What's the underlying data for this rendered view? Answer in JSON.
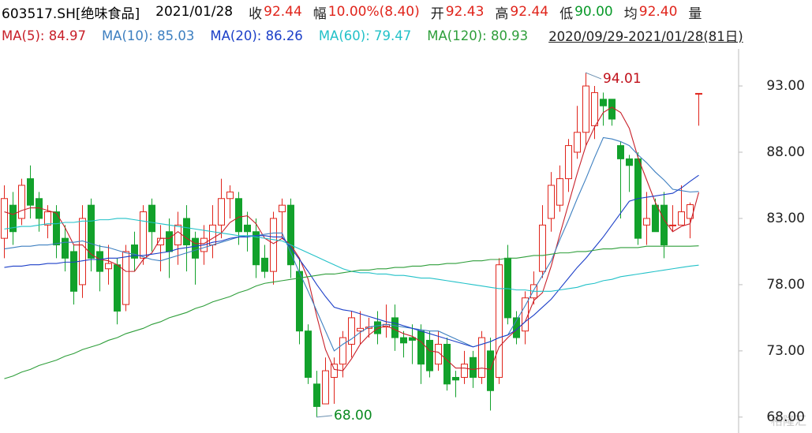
{
  "header": {
    "code": "603517.SH[绝味食品]",
    "date": "2021/01/28",
    "fields": [
      {
        "label": "收",
        "value": "92.44",
        "color": "#e0241b"
      },
      {
        "label": "幅",
        "value": "10.00%(8.40)",
        "color": "#e0241b"
      },
      {
        "label": "开",
        "value": "92.43",
        "color": "#e0241b"
      },
      {
        "label": "高",
        "value": "92.44",
        "color": "#e0241b"
      },
      {
        "label": "低",
        "value": "90.00",
        "color": "#0a9a2a"
      },
      {
        "label": "均",
        "value": "92.40",
        "color": "#e0241b"
      },
      {
        "label": "量",
        "value": "",
        "color": "#e0241b"
      }
    ],
    "range": "2020/09/29-2021/01/28(81日)",
    "watermark": "格隆汇"
  },
  "chart_data": {
    "type": "candlestick",
    "up_color": "#e0241b",
    "down_color": "#12a12b",
    "open": [
      81.5,
      84,
      83,
      86,
      84.5,
      82.5,
      83.5,
      81.5,
      80.5,
      78,
      84,
      80.5,
      79.2,
      79.5,
      76.5,
      81,
      80,
      84,
      81,
      82,
      81,
      83,
      81.5,
      80.5,
      81,
      82.5,
      84.5,
      84.5,
      82.5,
      82,
      80,
      79,
      83.5,
      84,
      79,
      74.5,
      70.5,
      69,
      71,
      72,
      73.5,
      74.5,
      74.7,
      75.2,
      74.8,
      75.5,
      74,
      74,
      74.5,
      73.8,
      72,
      73.5,
      71,
      71,
      72.5,
      71,
      73,
      71,
      80,
      75.5,
      74.5,
      77,
      79,
      83,
      84,
      86,
      88,
      89.5,
      90,
      92,
      92,
      88.5,
      87.5,
      87.5,
      82.5,
      84,
      84,
      82.5,
      82.5,
      83,
      92.43
    ],
    "high": [
      85.5,
      85,
      86,
      87,
      85,
      84,
      84,
      82.5,
      81,
      84,
      84.5,
      81,
      81,
      80,
      81,
      82,
      84,
      84.5,
      82.5,
      83,
      83.5,
      84,
      82,
      82.5,
      84,
      86,
      85.5,
      85,
      83.5,
      83,
      81,
      83.5,
      84.5,
      84.5,
      80,
      75,
      71.5,
      72.5,
      72.5,
      74.5,
      76,
      76,
      75.5,
      76,
      76.5,
      76.5,
      74.5,
      75,
      75,
      74.5,
      74.5,
      74,
      71.5,
      73,
      73,
      74.5,
      74,
      80,
      81,
      76,
      77.5,
      79,
      84,
      86.5,
      87,
      89,
      91.5,
      94.01,
      93,
      92.5,
      92,
      88.8,
      87.8,
      88,
      85,
      84.5,
      85,
      84,
      85.5,
      84.2,
      92.44
    ],
    "low": [
      80,
      81,
      82.5,
      83,
      82,
      81.5,
      80,
      79,
      76.5,
      77,
      79,
      77.5,
      78,
      75,
      76,
      79,
      79.5,
      80.5,
      79,
      78.5,
      79.5,
      79,
      78,
      79.5,
      80,
      81.5,
      83,
      81,
      80.5,
      78.5,
      78.5,
      78,
      81.5,
      78.5,
      73.5,
      70.5,
      68,
      69,
      69,
      71,
      72.5,
      73.5,
      74,
      73.5,
      74,
      73,
      72.5,
      72,
      70.5,
      71,
      71.5,
      70,
      69.5,
      70.5,
      70.2,
      70.5,
      68.5,
      70.5,
      75,
      73.5,
      73.5,
      76.5,
      78.5,
      82,
      83.5,
      85,
      87.5,
      88.5,
      89,
      90,
      90,
      83,
      85,
      81,
      81,
      82,
      80,
      82,
      82.5,
      81.5,
      90
    ],
    "close": [
      84.5,
      82,
      85.5,
      84,
      83,
      83.5,
      81,
      80,
      77.5,
      83,
      80,
      79,
      79.6,
      76,
      80.5,
      80,
      83.5,
      82,
      81.5,
      80.5,
      82.5,
      81,
      80,
      81.5,
      82.5,
      84.5,
      85,
      82,
      82,
      79.5,
      79,
      83,
      84,
      79.5,
      74.5,
      71,
      68.8,
      71.5,
      72,
      74,
      75.5,
      74.7,
      74.8,
      74.3,
      75,
      74,
      73.6,
      73.8,
      72,
      71.5,
      73.5,
      70.5,
      70.8,
      72,
      71,
      74,
      70,
      79.5,
      75.5,
      74,
      77,
      78,
      82.5,
      85.5,
      86,
      88.5,
      89.5,
      93,
      92.5,
      91.5,
      90.5,
      87.5,
      87,
      81.5,
      83,
      82,
      81,
      82.5,
      83.5,
      84.04,
      92.44
    ],
    "series": [
      {
        "label": "MA(5): 84.97",
        "color": "#c8202a",
        "values": [
          83.5,
          83.3,
          83.6,
          83.8,
          83.8,
          83.6,
          83.4,
          82.3,
          81.0,
          81.0,
          80.3,
          79.9,
          79.8,
          79.5,
          79.0,
          79.0,
          79.9,
          80.4,
          81.5,
          81.5,
          82.0,
          81.5,
          81.1,
          81.1,
          81.5,
          81.9,
          82.7,
          83.1,
          83.2,
          82.6,
          81.5,
          81.1,
          81.5,
          81.0,
          80.0,
          78.4,
          75.6,
          73.1,
          71.6,
          71.5,
          72.4,
          73.5,
          74.2,
          74.7,
          74.9,
          74.6,
          74.3,
          74.1,
          73.7,
          73.0,
          72.9,
          72.3,
          71.7,
          71.7,
          71.6,
          71.7,
          71.6,
          73.3,
          74.0,
          74.6,
          75.2,
          76.8,
          77.4,
          79.4,
          81.8,
          84.1,
          86.4,
          88.5,
          89.9,
          91.0,
          91.4,
          91.0,
          89.8,
          87.6,
          85.9,
          84.2,
          82.9,
          82.0,
          82.4,
          82.6,
          84.97
        ]
      },
      {
        "label": "MA(10): 85.03",
        "color": "#3d7fc0",
        "values": [
          80.7,
          80.8,
          80.9,
          80.9,
          81.0,
          81.0,
          81.1,
          81.2,
          81.2,
          81.3,
          81.1,
          80.9,
          80.8,
          80.6,
          80.4,
          80.3,
          80.1,
          79.9,
          79.8,
          80.0,
          80.2,
          80.4,
          80.6,
          80.8,
          81.0,
          81.2,
          81.4,
          81.6,
          81.7,
          81.7,
          81.8,
          81.9,
          81.9,
          80.4,
          78.9,
          77.5,
          76.0,
          74.5,
          73.0,
          73.5,
          73.9,
          74.4,
          74.8,
          74.9,
          75.0,
          74.9,
          74.8,
          74.7,
          74.6,
          74.5,
          74.5,
          74.2,
          73.9,
          73.6,
          73.3,
          73.5,
          73.7,
          74.0,
          74.2,
          75.3,
          76.4,
          77.6,
          78.7,
          79.8,
          81.4,
          82.9,
          84.5,
          86.0,
          87.6,
          89.1,
          89.0,
          88.8,
          88.5,
          87.8,
          87.2,
          86.5,
          85.9,
          85.2,
          85.1,
          85.0,
          85.03
        ]
      },
      {
        "label": "MA(20): 86.26",
        "color": "#1c3fc8",
        "values": [
          79.3,
          79.4,
          79.4,
          79.5,
          79.5,
          79.6,
          79.6,
          79.7,
          79.7,
          79.8,
          79.9,
          79.9,
          80.0,
          80.0,
          80.1,
          80.2,
          80.2,
          80.3,
          80.4,
          80.5,
          80.7,
          80.8,
          80.9,
          81.0,
          81.2,
          81.3,
          81.5,
          81.6,
          81.6,
          81.7,
          81.7,
          81.6,
          81.6,
          80.8,
          79.9,
          79.0,
          78.0,
          77.1,
          76.3,
          76.1,
          76.0,
          75.8,
          75.6,
          75.4,
          75.2,
          75.1,
          74.9,
          74.7,
          74.5,
          74.3,
          74.1,
          73.9,
          73.7,
          73.5,
          73.3,
          73.5,
          73.7,
          74.0,
          74.2,
          74.6,
          75.2,
          75.7,
          76.3,
          76.9,
          77.7,
          78.5,
          79.3,
          80.0,
          80.8,
          81.6,
          82.5,
          83.4,
          84.3,
          84.5,
          84.6,
          84.7,
          84.8,
          84.9,
          85.3,
          85.8,
          86.26
        ]
      },
      {
        "label": "MA(60): 79.47",
        "color": "#22c1c8",
        "values": [
          82.2,
          82.3,
          82.4,
          82.4,
          82.5,
          82.6,
          82.6,
          82.7,
          82.7,
          82.8,
          82.8,
          82.9,
          82.9,
          83.0,
          83.0,
          82.9,
          82.8,
          82.7,
          82.6,
          82.5,
          82.4,
          82.3,
          82.2,
          82.1,
          82.0,
          81.9,
          81.8,
          81.7,
          81.7,
          81.6,
          81.5,
          81.4,
          81.3,
          81.0,
          80.7,
          80.4,
          80.1,
          79.8,
          79.5,
          79.2,
          79.0,
          78.9,
          78.9,
          78.8,
          78.8,
          78.7,
          78.7,
          78.6,
          78.5,
          78.5,
          78.4,
          78.3,
          78.2,
          78.1,
          78.0,
          77.9,
          77.8,
          77.7,
          77.7,
          77.6,
          77.6,
          77.5,
          77.5,
          77.5,
          77.6,
          77.7,
          77.8,
          78.0,
          78.1,
          78.3,
          78.4,
          78.6,
          78.7,
          78.8,
          78.9,
          79.0,
          79.1,
          79.2,
          79.3,
          79.4,
          79.47
        ]
      },
      {
        "label": "MA(120): 80.93",
        "color": "#2e9e3a",
        "values": [
          70.9,
          71.1,
          71.4,
          71.6,
          71.9,
          72.1,
          72.3,
          72.6,
          72.8,
          73.1,
          73.3,
          73.5,
          73.8,
          74.0,
          74.3,
          74.5,
          74.7,
          75.0,
          75.2,
          75.5,
          75.7,
          75.9,
          76.2,
          76.4,
          76.7,
          76.9,
          77.1,
          77.4,
          77.6,
          77.9,
          78.1,
          78.2,
          78.3,
          78.4,
          78.5,
          78.6,
          78.7,
          78.8,
          78.8,
          78.9,
          79.0,
          79.1,
          79.1,
          79.2,
          79.2,
          79.3,
          79.3,
          79.4,
          79.4,
          79.5,
          79.5,
          79.6,
          79.6,
          79.7,
          79.8,
          79.8,
          79.9,
          79.9,
          80.0,
          80.0,
          80.1,
          80.2,
          80.2,
          80.3,
          80.4,
          80.4,
          80.5,
          80.5,
          80.6,
          80.7,
          80.7,
          80.8,
          80.8,
          80.8,
          80.9,
          80.9,
          80.9,
          80.9,
          80.9,
          80.9,
          80.93
        ]
      }
    ],
    "annotations": [
      {
        "label": "94.01",
        "value": 94.01,
        "color": "#c0101a"
      },
      {
        "label": "68.00",
        "value": 68,
        "color": "#0a8a20"
      }
    ],
    "ylim": [
      66.8,
      95.8
    ],
    "yticks": [
      {
        "value": 68,
        "label": "68.00"
      },
      {
        "value": 73,
        "label": "73.00"
      },
      {
        "value": 78,
        "label": "78.00"
      },
      {
        "value": 83,
        "label": "83.00"
      },
      {
        "value": 88,
        "label": "88.00"
      },
      {
        "value": 93,
        "label": "93.00"
      }
    ]
  }
}
